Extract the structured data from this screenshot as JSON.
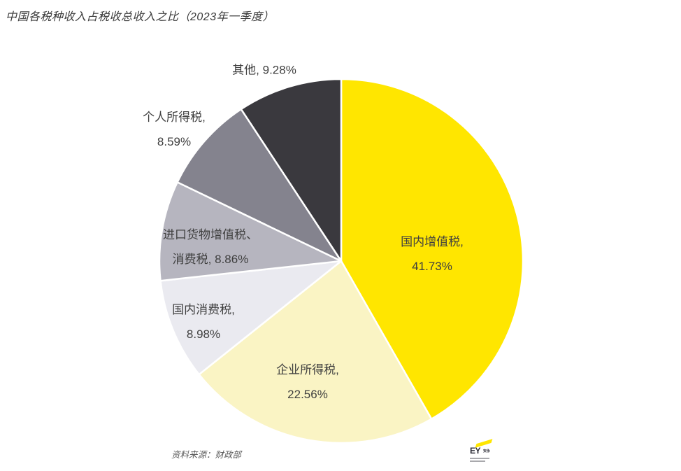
{
  "page": {
    "title": "中国各税种收入占税收总收入之比（2023年一季度）",
    "source": "资料来源：财政部"
  },
  "logo": {
    "text": "EY",
    "suffix": "安永"
  },
  "chart_data": {
    "type": "pie",
    "title": "中国各税种收入占税收总收入之比（2023年一季度）",
    "source": "资料来源：财政部",
    "start_angle_deg": 0,
    "direction": "clockwise",
    "legend_position": "none",
    "labels_style": "outside-and-inside, category + percent",
    "slices": [
      {
        "name": "国内增值税",
        "value_pct": 41.73,
        "color": "#FFE600",
        "label_lines": [
          "国内增值税,",
          "41.73%"
        ]
      },
      {
        "name": "企业所得税",
        "value_pct": 22.56,
        "color": "#FAF4C4",
        "label_lines": [
          "企业所得税,",
          "22.56%"
        ]
      },
      {
        "name": "国内消费税",
        "value_pct": 8.98,
        "color": "#EAEAF0",
        "label_lines": [
          "国内消费税,",
          "8.98%"
        ]
      },
      {
        "name": "进口货物增值税、消费税",
        "value_pct": 8.86,
        "color": "#B6B5BF",
        "label_lines": [
          "进口货物增值税、",
          "消费税, 8.86%"
        ]
      },
      {
        "name": "个人所得税",
        "value_pct": 8.59,
        "color": "#84838E",
        "label_lines": [
          "个人所得税,",
          "8.59%"
        ]
      },
      {
        "name": "其他",
        "value_pct": 9.28,
        "color": "#3A393E",
        "label_lines": [
          "其他, 9.28%"
        ]
      }
    ]
  }
}
